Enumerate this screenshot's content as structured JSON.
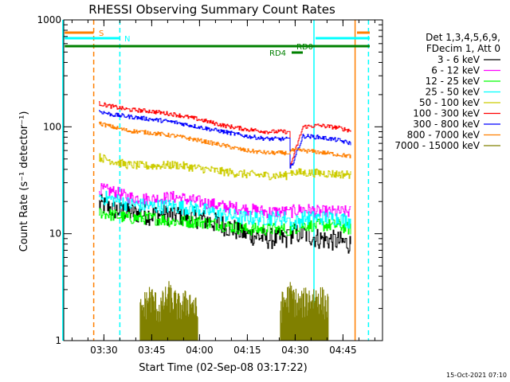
{
  "chart_data": {
    "type": "line",
    "title": "RHESSI Observing Summary Count Rates",
    "xlabel": "Start Time (02-Sep-08 03:17:22)",
    "ylabel": "Count Rate (s⁻¹ detector⁻¹)",
    "yscale": "log",
    "ylim": [
      1,
      1000
    ],
    "xlim_minutes_after_0317": [
      0,
      100
    ],
    "x_ticks": [
      {
        "label": "03:30",
        "minutes": 12.6
      },
      {
        "label": "03:45",
        "minutes": 27.6
      },
      {
        "label": "04:00",
        "minutes": 42.6
      },
      {
        "label": "04:15",
        "minutes": 57.6
      },
      {
        "label": "04:30",
        "minutes": 72.6
      },
      {
        "label": "04:45",
        "minutes": 87.6
      }
    ],
    "y_ticks": [
      {
        "label": "1",
        "value": 1
      },
      {
        "label": "10",
        "value": 10
      },
      {
        "label": "100",
        "value": 100
      },
      {
        "label": "1000",
        "value": 1000
      }
    ],
    "legend_header": [
      "Det 1,3,4,5,6,9,",
      "FDecim 1, Att 0"
    ],
    "legend_position": "right",
    "timestamp": "15-Oct-2021 07:10",
    "flags": [
      {
        "label": "S",
        "color": "#ff7f00"
      },
      {
        "label": "N",
        "color": "#00ffff"
      },
      {
        "label": "RD4",
        "color": "#008000"
      },
      {
        "label": "RD0",
        "color": "#008000"
      }
    ],
    "series": [
      {
        "name": "3 - 6 keV",
        "color": "#000000",
        "x": [
          11,
          15,
          20,
          27,
          35,
          42,
          50,
          57,
          64,
          70,
          71,
          75,
          80,
          86,
          90
        ],
        "values": [
          19,
          17,
          16,
          15,
          15,
          14,
          12,
          10,
          9,
          9,
          10,
          10,
          9,
          8.5,
          8
        ]
      },
      {
        "name": "6 - 12 keV",
        "color": "#ff00ff",
        "x": [
          11,
          15,
          20,
          27,
          35,
          42,
          50,
          57,
          64,
          70,
          71,
          75,
          80,
          86,
          90
        ],
        "values": [
          26,
          25,
          22,
          21,
          22,
          20,
          18,
          17,
          16,
          16,
          16,
          17,
          16,
          16,
          16
        ]
      },
      {
        "name": "12 - 25 keV",
        "color": "#00ff00",
        "x": [
          11,
          15,
          20,
          27,
          35,
          42,
          50,
          57,
          64,
          70,
          71,
          75,
          80,
          86,
          90
        ],
        "values": [
          16,
          15,
          14,
          14,
          13,
          13,
          12,
          11,
          11,
          11,
          11,
          12,
          12,
          12,
          11
        ]
      },
      {
        "name": "25 - 50 keV",
        "color": "#00ffff",
        "x": [
          11,
          15,
          20,
          27,
          35,
          42,
          50,
          57,
          64,
          70,
          71,
          75,
          80,
          86,
          90
        ],
        "values": [
          22,
          21,
          19,
          18,
          18,
          17,
          15,
          14,
          14,
          14,
          12,
          14,
          14,
          14,
          13
        ]
      },
      {
        "name": "50 - 100 keV",
        "color": "#cccc00",
        "x": [
          11,
          15,
          20,
          27,
          35,
          42,
          50,
          57,
          64,
          70,
          71,
          75,
          80,
          86,
          90
        ],
        "values": [
          52,
          48,
          44,
          43,
          44,
          41,
          38,
          36,
          35,
          35,
          38,
          37,
          37,
          36,
          36
        ]
      },
      {
        "name": "100 - 300 keV",
        "color": "#ff0000",
        "x": [
          11,
          15,
          20,
          27,
          35,
          42,
          50,
          57,
          64,
          70,
          71,
          75,
          80,
          86,
          90
        ],
        "values": [
          165,
          155,
          145,
          140,
          130,
          118,
          103,
          95,
          90,
          90,
          43,
          100,
          103,
          98,
          92
        ]
      },
      {
        "name": "300 - 800 keV",
        "color": "#0000ff",
        "x": [
          11,
          15,
          20,
          27,
          35,
          42,
          50,
          57,
          64,
          70,
          71,
          75,
          80,
          86,
          90
        ],
        "values": [
          140,
          130,
          125,
          118,
          110,
          100,
          90,
          82,
          77,
          77,
          40,
          82,
          80,
          75,
          70
        ]
      },
      {
        "name": "800 - 7000 keV",
        "color": "#ff7f00",
        "x": [
          11,
          15,
          20,
          27,
          35,
          42,
          50,
          57,
          64,
          70,
          71,
          75,
          80,
          86,
          90
        ],
        "values": [
          108,
          100,
          92,
          88,
          82,
          75,
          67,
          60,
          57,
          57,
          60,
          60,
          58,
          55,
          53
        ]
      },
      {
        "name": "7000 - 15000 keV",
        "color": "#808000",
        "x": [
          24,
          27,
          30,
          33,
          36,
          40,
          42,
          68,
          71,
          74,
          77,
          80,
          83
        ],
        "values": [
          1.8,
          2.5,
          1.9,
          2.6,
          2.0,
          2.3,
          1.7,
          2.0,
          2.6,
          2.1,
          2.4,
          2.5,
          2.0
        ]
      }
    ]
  }
}
